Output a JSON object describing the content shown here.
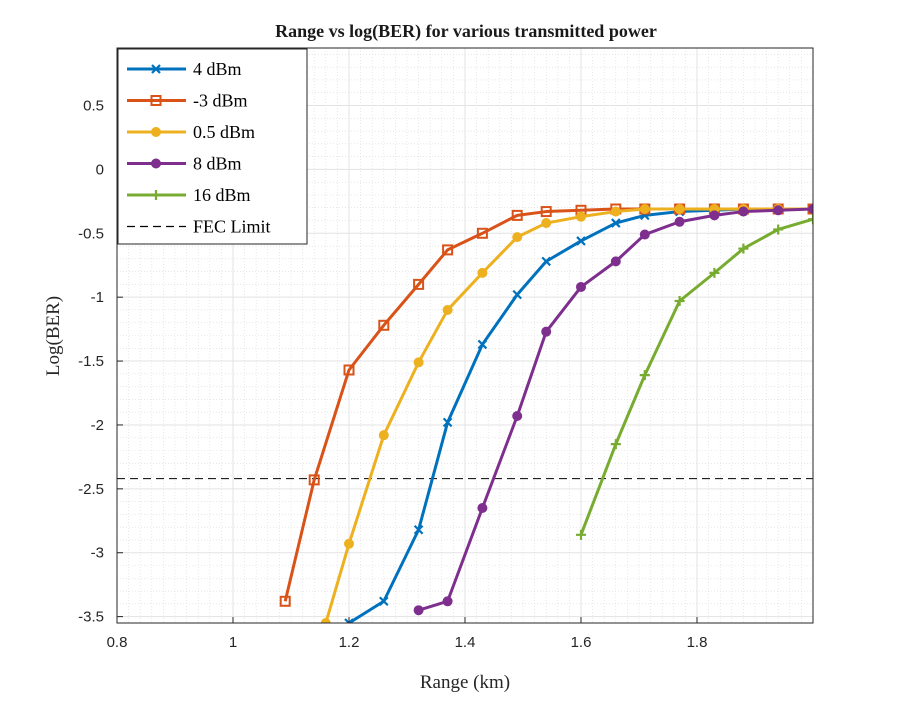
{
  "chart_data": {
    "type": "line",
    "title": "Range vs log(BER) for various transmitted power",
    "xlabel": "Range (km)",
    "ylabel": "Log(BER)",
    "xlim": [
      0.8,
      2.0
    ],
    "ylim": [
      -3.55,
      0.95
    ],
    "xticks": [
      0.8,
      1,
      1.2,
      1.4,
      1.6,
      1.8
    ],
    "xtick_labels": [
      "0.8",
      "1",
      "1.2",
      "1.4",
      "1.6",
      "1.8"
    ],
    "yticks": [
      -3.5,
      -3,
      -2.5,
      -2,
      -1.5,
      -1,
      -0.5,
      0,
      0.5
    ],
    "ytick_labels": [
      "-3.5",
      "-3",
      "-2.5",
      "-2",
      "-1.5",
      "-1",
      "-0.5",
      "0",
      "0.5"
    ],
    "grid": true,
    "minor_grid": true,
    "legend_position": "top-left",
    "series": [
      {
        "name": "4 dBm",
        "color": "#0072bd",
        "marker": "x",
        "x": [
          1.2,
          1.26,
          1.32,
          1.37,
          1.43,
          1.49,
          1.54,
          1.6,
          1.66,
          1.71,
          1.77,
          1.83,
          1.88,
          1.94,
          2.0
        ],
        "y": [
          -3.55,
          -3.38,
          -2.82,
          -1.98,
          -1.37,
          -0.98,
          -0.72,
          -0.56,
          -0.42,
          -0.36,
          -0.33,
          -0.32,
          -0.31,
          -0.31,
          -0.31
        ]
      },
      {
        "name": "-3 dBm",
        "color": "#d95319",
        "marker": "square",
        "x": [
          1.09,
          1.14,
          1.2,
          1.26,
          1.32,
          1.37,
          1.43,
          1.49,
          1.54,
          1.6,
          1.66,
          1.71,
          1.77,
          1.83,
          1.88,
          1.94,
          2.0
        ],
        "y": [
          -3.38,
          -2.43,
          -1.57,
          -1.22,
          -0.9,
          -0.63,
          -0.5,
          -0.36,
          -0.33,
          -0.32,
          -0.31,
          -0.31,
          -0.31,
          -0.31,
          -0.31,
          -0.31,
          -0.31
        ]
      },
      {
        "name": "0.5 dBm",
        "color": "#edb120",
        "marker": "circle",
        "x": [
          1.16,
          1.2,
          1.26,
          1.32,
          1.37,
          1.43,
          1.49,
          1.54,
          1.6,
          1.66,
          1.71,
          1.77,
          1.83,
          1.88,
          1.94,
          2.0
        ],
        "y": [
          -3.55,
          -2.93,
          -2.08,
          -1.51,
          -1.1,
          -0.81,
          -0.53,
          -0.42,
          -0.37,
          -0.33,
          -0.31,
          -0.31,
          -0.31,
          -0.31,
          -0.31,
          -0.31
        ]
      },
      {
        "name": "8 dBm",
        "color": "#7e2f8e",
        "marker": "circle",
        "x": [
          1.32,
          1.37,
          1.43,
          1.49,
          1.54,
          1.6,
          1.66,
          1.71,
          1.77,
          1.83,
          1.88,
          1.94,
          2.0
        ],
        "y": [
          -3.45,
          -3.38,
          -2.65,
          -1.93,
          -1.27,
          -0.92,
          -0.72,
          -0.51,
          -0.41,
          -0.36,
          -0.33,
          -0.32,
          -0.31
        ]
      },
      {
        "name": "16 dBm",
        "color": "#77ac30",
        "marker": "plus",
        "x": [
          1.6,
          1.66,
          1.71,
          1.77,
          1.83,
          1.88,
          1.94,
          2.0
        ],
        "y": [
          -2.86,
          -2.15,
          -1.61,
          -1.03,
          -0.81,
          -0.62,
          -0.47,
          -0.39
        ]
      }
    ],
    "reference_lines": [
      {
        "name": "FEC Limit",
        "y": -2.42,
        "style": "dashed",
        "color": "#000000"
      }
    ]
  }
}
